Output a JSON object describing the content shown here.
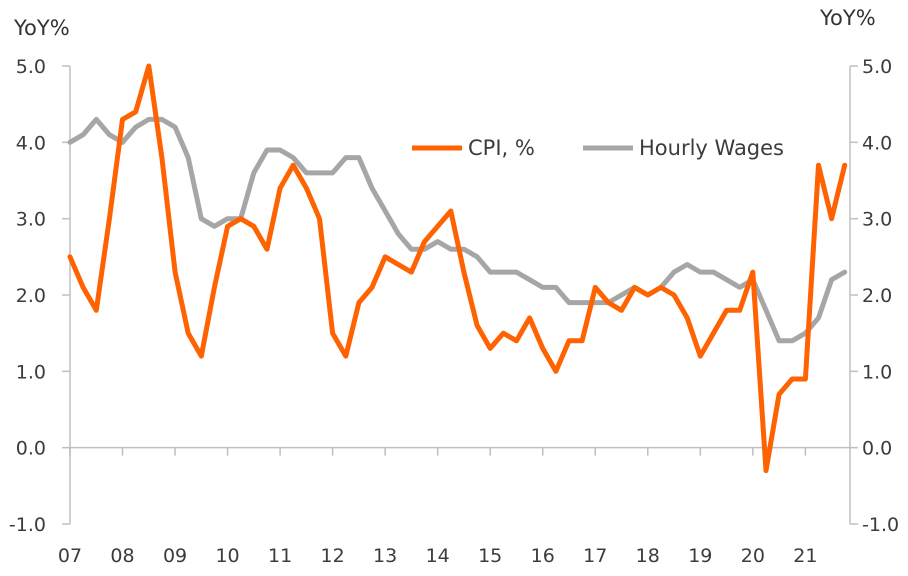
{
  "chart_data": {
    "type": "line",
    "y_axis_left_label": "YoY%",
    "y_axis_right_label": "YoY%",
    "ylim": [
      -1.0,
      5.0
    ],
    "y_ticks": [
      "5.0",
      "4.0",
      "3.0",
      "2.0",
      "1.0",
      "0.0",
      "-1.0"
    ],
    "x_ticks": [
      "07",
      "08",
      "09",
      "10",
      "11",
      "12",
      "13",
      "14",
      "15",
      "16",
      "17",
      "18",
      "19",
      "20",
      "21"
    ],
    "xlim": [
      2007.0,
      2021.85
    ],
    "grid": false,
    "legend_position": "upper-right",
    "colors": {
      "cpi": "#ff6200",
      "wages": "#a6a6a6",
      "axis": "#bfbfbf"
    },
    "series": [
      {
        "name": "CPI, %",
        "key": "cpi",
        "x": [
          2007.0,
          2007.25,
          2007.5,
          2007.75,
          2008.0,
          2008.25,
          2008.5,
          2008.75,
          2009.0,
          2009.25,
          2009.5,
          2009.75,
          2010.0,
          2010.25,
          2010.5,
          2010.75,
          2011.0,
          2011.25,
          2011.5,
          2011.75,
          2012.0,
          2012.25,
          2012.5,
          2012.75,
          2013.0,
          2013.25,
          2013.5,
          2013.75,
          2014.0,
          2014.25,
          2014.5,
          2014.75,
          2015.0,
          2015.25,
          2015.5,
          2015.75,
          2016.0,
          2016.25,
          2016.5,
          2016.75,
          2017.0,
          2017.25,
          2017.5,
          2017.75,
          2018.0,
          2018.25,
          2018.5,
          2018.75,
          2019.0,
          2019.25,
          2019.5,
          2019.75,
          2020.0,
          2020.25,
          2020.5,
          2020.75,
          2021.0,
          2021.25,
          2021.5,
          2021.75
        ],
        "y": [
          2.5,
          2.1,
          1.8,
          3.0,
          4.3,
          4.4,
          5.0,
          3.8,
          2.3,
          1.5,
          1.2,
          2.1,
          2.9,
          3.0,
          2.9,
          2.6,
          3.4,
          3.7,
          3.4,
          3.0,
          1.5,
          1.2,
          1.9,
          2.1,
          2.5,
          2.4,
          2.3,
          2.7,
          2.9,
          3.1,
          2.3,
          1.6,
          1.3,
          1.5,
          1.4,
          1.7,
          1.3,
          1.0,
          1.4,
          1.4,
          2.1,
          1.9,
          1.8,
          2.1,
          2.0,
          2.1,
          2.0,
          1.7,
          1.2,
          1.5,
          1.8,
          1.8,
          2.3,
          -0.3,
          0.7,
          0.9,
          0.9,
          3.7,
          3.0,
          3.7
        ]
      },
      {
        "name": "Hourly Wages",
        "key": "wages",
        "x": [
          2007.0,
          2007.25,
          2007.5,
          2007.75,
          2008.0,
          2008.25,
          2008.5,
          2008.75,
          2009.0,
          2009.25,
          2009.5,
          2009.75,
          2010.0,
          2010.25,
          2010.5,
          2010.75,
          2011.0,
          2011.25,
          2011.5,
          2011.75,
          2012.0,
          2012.25,
          2012.5,
          2012.75,
          2013.0,
          2013.25,
          2013.5,
          2013.75,
          2014.0,
          2014.25,
          2014.5,
          2014.75,
          2015.0,
          2015.25,
          2015.5,
          2015.75,
          2016.0,
          2016.25,
          2016.5,
          2016.75,
          2017.0,
          2017.25,
          2017.5,
          2017.75,
          2018.0,
          2018.25,
          2018.5,
          2018.75,
          2019.0,
          2019.25,
          2019.5,
          2019.75,
          2020.0,
          2020.25,
          2020.5,
          2020.75,
          2021.0,
          2021.25,
          2021.5,
          2021.75
        ],
        "y": [
          4.0,
          4.1,
          4.3,
          4.1,
          4.0,
          4.2,
          4.3,
          4.3,
          4.2,
          3.8,
          3.0,
          2.9,
          3.0,
          3.0,
          3.6,
          3.9,
          3.9,
          3.8,
          3.6,
          3.6,
          3.6,
          3.8,
          3.8,
          3.4,
          3.1,
          2.8,
          2.6,
          2.6,
          2.7,
          2.6,
          2.6,
          2.5,
          2.3,
          2.3,
          2.3,
          2.2,
          2.1,
          2.1,
          1.9,
          1.9,
          1.9,
          1.9,
          2.0,
          2.1,
          2.0,
          2.1,
          2.3,
          2.4,
          2.3,
          2.3,
          2.2,
          2.1,
          2.2,
          1.8,
          1.4,
          1.4,
          1.5,
          1.7,
          2.2,
          2.3
        ]
      }
    ]
  }
}
